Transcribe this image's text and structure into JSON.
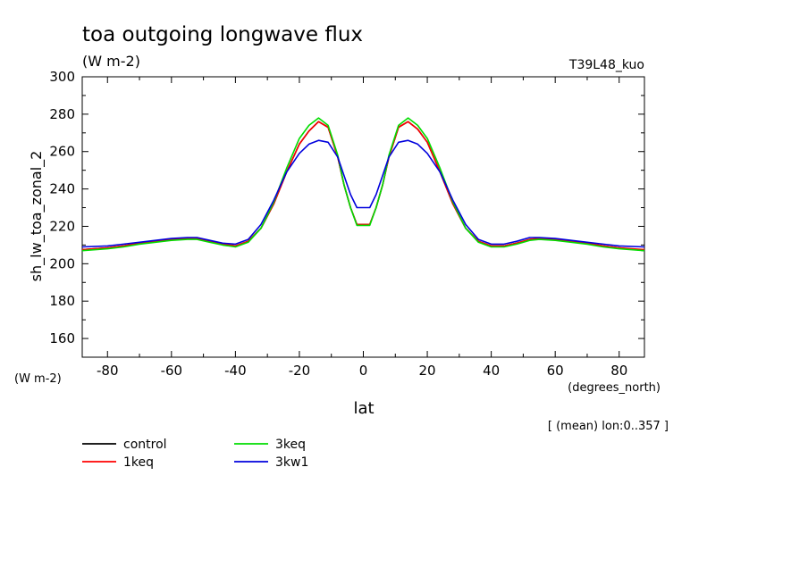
{
  "chart_data": {
    "type": "line",
    "title": "toa outgoing longwave flux",
    "units": "(W m-2)",
    "experiment": "T39L48_kuo",
    "ylabel": "sh_lw_toa_zonal_2",
    "ylabel_units": "(W m-2)",
    "xlabel": "lat",
    "xlabel_units": "(degrees_north)",
    "averaging_note": "[ (mean) lon:0..357 ]",
    "xlim": [
      -87.9,
      87.9
    ],
    "ylim": [
      150,
      300
    ],
    "x_ticks": [
      -80,
      -60,
      -40,
      -20,
      0,
      20,
      40,
      60,
      80
    ],
    "y_ticks": [
      160,
      180,
      200,
      220,
      240,
      260,
      280,
      300
    ],
    "x_tick_labels": [
      "-80",
      "-60",
      "-40",
      "-20",
      "0",
      "20",
      "40",
      "60",
      "80"
    ],
    "y_tick_labels": [
      "160",
      "180",
      "200",
      "220",
      "240",
      "260",
      "280",
      "300"
    ],
    "x": [
      -87.9,
      -80,
      -75,
      -70,
      -65,
      -60,
      -55,
      -52,
      -48,
      -44,
      -40,
      -36,
      -32,
      -28,
      -24,
      -20,
      -17,
      -14,
      -11,
      -8,
      -6,
      -4,
      -2,
      0,
      2,
      4,
      6,
      8,
      11,
      14,
      17,
      20,
      24,
      28,
      32,
      36,
      40,
      44,
      48,
      52,
      55,
      60,
      65,
      70,
      75,
      80,
      87.9
    ],
    "series": [
      {
        "name": "control",
        "color": "#000000",
        "values": [
          207.5,
          208.5,
          209.5,
          211,
          212,
          213,
          213.5,
          213.5,
          212,
          210.5,
          209.5,
          212,
          219,
          232,
          249,
          264,
          271,
          276,
          273,
          257,
          242,
          230,
          221,
          221,
          221,
          230,
          242,
          257,
          273,
          276,
          272,
          265,
          249,
          232,
          219,
          212,
          209.5,
          209.5,
          211,
          213,
          213.5,
          213,
          212,
          211,
          209.5,
          208.5,
          207
        ]
      },
      {
        "name": "1keq",
        "color": "#ff0000",
        "values": [
          207.5,
          208.5,
          209.5,
          211,
          212,
          213,
          213.5,
          213.5,
          212,
          210.5,
          209.5,
          212,
          219,
          232,
          249,
          264,
          271,
          276,
          273,
          257,
          242,
          230,
          221,
          221,
          221,
          230,
          242,
          257,
          273,
          276,
          272,
          265,
          249,
          232,
          219,
          212,
          209.5,
          209.5,
          211,
          213,
          213.5,
          213,
          212,
          211,
          209.5,
          208.5,
          207.5
        ]
      },
      {
        "name": "3keq",
        "color": "#00dd00",
        "values": [
          207,
          208,
          209,
          210.5,
          211.5,
          212.5,
          213,
          213,
          211.5,
          210,
          209,
          211.5,
          219,
          233,
          251,
          267,
          274,
          278,
          274,
          258,
          242,
          230,
          220.5,
          220.5,
          220.5,
          230,
          242,
          258,
          274,
          278,
          274,
          267,
          251,
          233,
          219,
          211.5,
          209,
          209,
          210.5,
          212.5,
          213,
          212.5,
          211.5,
          210.5,
          209,
          208,
          207
        ]
      },
      {
        "name": "3kw1",
        "color": "#0000dd",
        "values": [
          209,
          209.5,
          210.5,
          211.5,
          212.5,
          213.5,
          214,
          214,
          212.5,
          211,
          210.5,
          213,
          221,
          234,
          249,
          259,
          264,
          266,
          265,
          257,
          247,
          237,
          230,
          230,
          230,
          237,
          247,
          257,
          265,
          266,
          264,
          259,
          249,
          234,
          221,
          213,
          210.5,
          210.5,
          212,
          214,
          214,
          213.5,
          212.5,
          211.5,
          210.5,
          209.5,
          209
        ]
      }
    ],
    "legend_placement": "bottom-left",
    "grid": false
  }
}
